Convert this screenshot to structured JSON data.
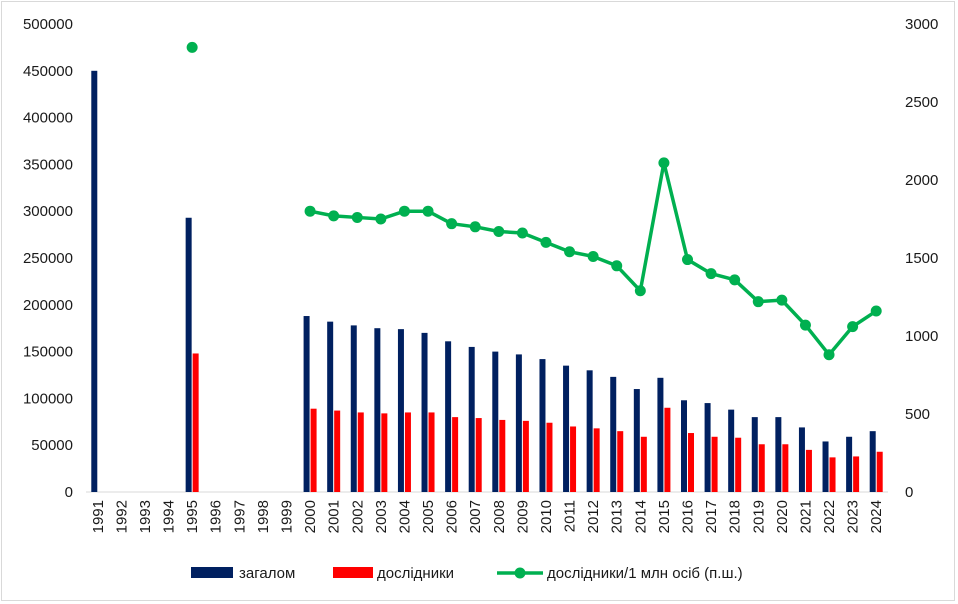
{
  "chart_data": {
    "type": "bar",
    "title": "",
    "categories": [
      "1991",
      "1992",
      "1993",
      "1994",
      "1995",
      "1996",
      "1997",
      "1998",
      "1999",
      "2000",
      "2001",
      "2002",
      "2003",
      "2004",
      "2005",
      "2006",
      "2007",
      "2008",
      "2009",
      "2010",
      "2011",
      "2012",
      "2013",
      "2014",
      "2015",
      "2016",
      "2017",
      "2018",
      "2019",
      "2020",
      "2021",
      "2022",
      "2023",
      "2024"
    ],
    "series": [
      {
        "name": "загалом",
        "type": "bar",
        "axis": "left",
        "color": "#002060",
        "values": [
          450000,
          null,
          null,
          null,
          293000,
          null,
          null,
          null,
          null,
          188000,
          182000,
          178000,
          175000,
          174000,
          170000,
          161000,
          155000,
          150000,
          147000,
          142000,
          135000,
          130000,
          123000,
          110000,
          122000,
          98000,
          95000,
          88000,
          80000,
          80000,
          69000,
          54000,
          59000,
          65000
        ]
      },
      {
        "name": "дослідники",
        "type": "bar",
        "axis": "left",
        "color": "#ff0000",
        "values": [
          null,
          null,
          null,
          null,
          148000,
          null,
          null,
          null,
          null,
          89000,
          87000,
          85000,
          84000,
          85000,
          85000,
          80000,
          79000,
          77000,
          76000,
          74000,
          70000,
          68000,
          65000,
          59000,
          90000,
          63000,
          59000,
          58000,
          51000,
          51000,
          45000,
          37000,
          38000,
          43000
        ]
      },
      {
        "name": "дослідники/1 млн осіб (п.ш.)",
        "type": "line",
        "axis": "right",
        "color": "#00b050",
        "values": [
          null,
          null,
          null,
          null,
          2850,
          null,
          null,
          null,
          null,
          1800,
          1770,
          1760,
          1750,
          1800,
          1800,
          1720,
          1700,
          1670,
          1660,
          1600,
          1540,
          1510,
          1450,
          1290,
          2110,
          1490,
          1400,
          1360,
          1220,
          1230,
          1070,
          880,
          1060,
          1160
        ]
      }
    ],
    "y_left": {
      "min": 0,
      "max": 500000,
      "ticks": [
        "0",
        "50000",
        "100000",
        "150000",
        "200000",
        "250000",
        "300000",
        "350000",
        "400000",
        "450000",
        "500000"
      ]
    },
    "y_right": {
      "min": 0,
      "max": 3000,
      "ticks": [
        "0",
        "500",
        "1000",
        "1500",
        "2000",
        "2500",
        "3000"
      ]
    },
    "xlabel": "",
    "ylabel": "",
    "grid": false,
    "legend": "bottom"
  }
}
